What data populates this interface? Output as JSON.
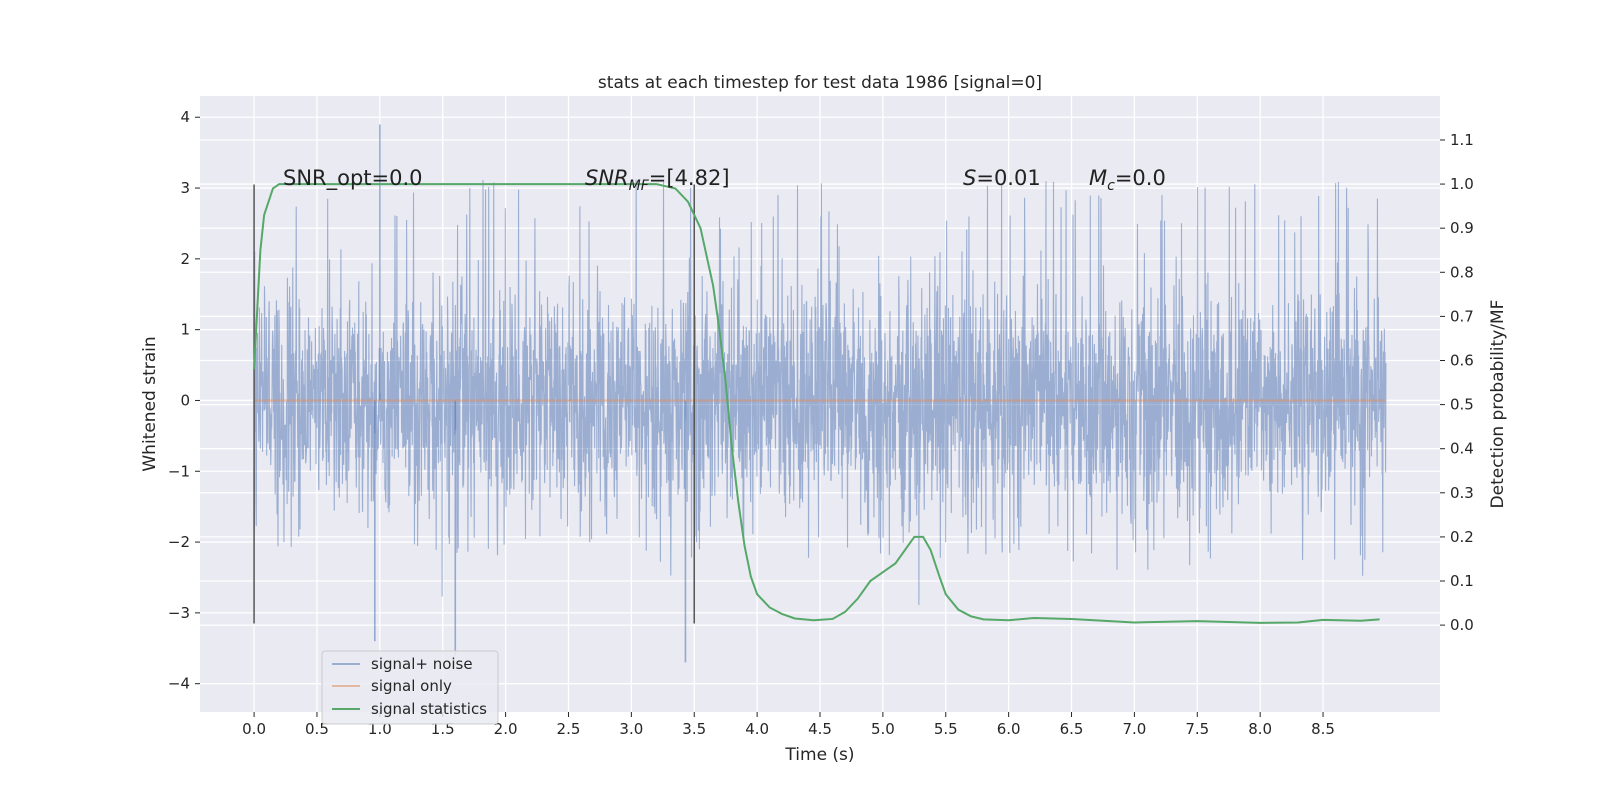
{
  "chart_data": {
    "type": "line",
    "title": "stats at each timestep for test data 1986 [signal=0]",
    "xlabel": "Time (s)",
    "ylabel": "Whitened strain",
    "y2label": "Detection probability/MF",
    "xlim": [
      -0.43,
      9.43
    ],
    "ylim": [
      -4.4,
      4.3
    ],
    "y2lim": [
      -0.197,
      1.1997
    ],
    "grid": true,
    "x_ticks": [
      0.0,
      0.5,
      1.0,
      1.5,
      2.0,
      2.5,
      3.0,
      3.5,
      4.0,
      4.5,
      5.0,
      5.5,
      6.0,
      6.5,
      7.0,
      7.5,
      8.0,
      8.5
    ],
    "x_tick_labels": [
      "0.0",
      "0.5",
      "1.0",
      "1.5",
      "2.0",
      "2.5",
      "3.0",
      "3.5",
      "4.0",
      "4.5",
      "5.0",
      "5.5",
      "6.0",
      "6.5",
      "7.0",
      "7.5",
      "8.0",
      "8.5"
    ],
    "y_ticks": [
      -4,
      -3,
      -2,
      -1,
      0,
      1,
      2,
      3,
      4
    ],
    "y_tick_labels": [
      "−4",
      "−3",
      "−2",
      "−1",
      "0",
      "1",
      "2",
      "3",
      "4"
    ],
    "y2_ticks": [
      0.0,
      0.1,
      0.2,
      0.3,
      0.4,
      0.5,
      0.6,
      0.7,
      0.8,
      0.9,
      1.0,
      1.1
    ],
    "y2_tick_labels": [
      "0.0",
      "0.1",
      "0.2",
      "0.3",
      "0.4",
      "0.5",
      "0.6",
      "0.7",
      "0.8",
      "0.9",
      "1.0",
      "1.1"
    ],
    "legend_position": "lower-left",
    "series": [
      {
        "name": "signal+ noise",
        "axis": "left",
        "color": "#4c72b0",
        "description": "dense whitened noise, roughly uniform amplitude",
        "x_range": [
          0.0,
          9.0
        ],
        "typical_envelope": [
          -1.9,
          2.6
        ],
        "extremes": [
          {
            "x": 1.0,
            "y": 3.9
          },
          {
            "x": 3.43,
            "y": -3.7
          },
          {
            "x": 1.6,
            "y": -3.6
          },
          {
            "x": 0.96,
            "y": -3.4
          }
        ]
      },
      {
        "name": "signal only",
        "axis": "left",
        "color": "#dd8452",
        "x": [
          0.0,
          9.0
        ],
        "y": [
          0.0,
          0.0
        ]
      },
      {
        "name": "signal statistics",
        "axis": "right",
        "color": "#55a868",
        "x": [
          0.0,
          0.05,
          0.08,
          0.15,
          0.2,
          0.3,
          0.5,
          1.0,
          2.0,
          3.0,
          3.2,
          3.35,
          3.45,
          3.55,
          3.65,
          3.7,
          3.75,
          3.8,
          3.85,
          3.9,
          3.95,
          4.0,
          4.1,
          4.2,
          4.3,
          4.45,
          4.6,
          4.7,
          4.8,
          4.9,
          5.0,
          5.1,
          5.2,
          5.25,
          5.32,
          5.38,
          5.45,
          5.5,
          5.6,
          5.7,
          5.8,
          6.0,
          6.2,
          6.5,
          7.0,
          7.5,
          8.0,
          8.3,
          8.5,
          8.8,
          8.95
        ],
        "y": [
          0.58,
          0.85,
          0.93,
          0.99,
          1.0,
          1.0,
          1.0,
          1.0,
          1.0,
          1.0,
          1.0,
          0.99,
          0.96,
          0.9,
          0.77,
          0.67,
          0.55,
          0.4,
          0.28,
          0.18,
          0.11,
          0.07,
          0.04,
          0.025,
          0.015,
          0.011,
          0.014,
          0.03,
          0.06,
          0.1,
          0.12,
          0.14,
          0.18,
          0.2,
          0.2,
          0.17,
          0.11,
          0.07,
          0.035,
          0.02,
          0.013,
          0.011,
          0.016,
          0.014,
          0.006,
          0.009,
          0.005,
          0.006,
          0.012,
          0.01,
          0.013
        ]
      }
    ],
    "vlines": [
      {
        "x": 0.0,
        "y_range": [
          -3.15,
          3.05
        ],
        "color": "#555555"
      },
      {
        "x": 3.5,
        "y_range": [
          -3.15,
          3.05
        ],
        "color": "#555555"
      }
    ],
    "annotations": [
      {
        "text": "SNR_opt=0.0",
        "x": 0.2,
        "y": 3.07
      },
      {
        "text": "SNR_MF=[4.82]",
        "x": 2.6,
        "y": 3.07
      },
      {
        "text": "S=0.01",
        "x": 5.6,
        "y": 3.07
      },
      {
        "text": "M_c=0.0",
        "x": 6.6,
        "y": 3.07
      }
    ]
  }
}
